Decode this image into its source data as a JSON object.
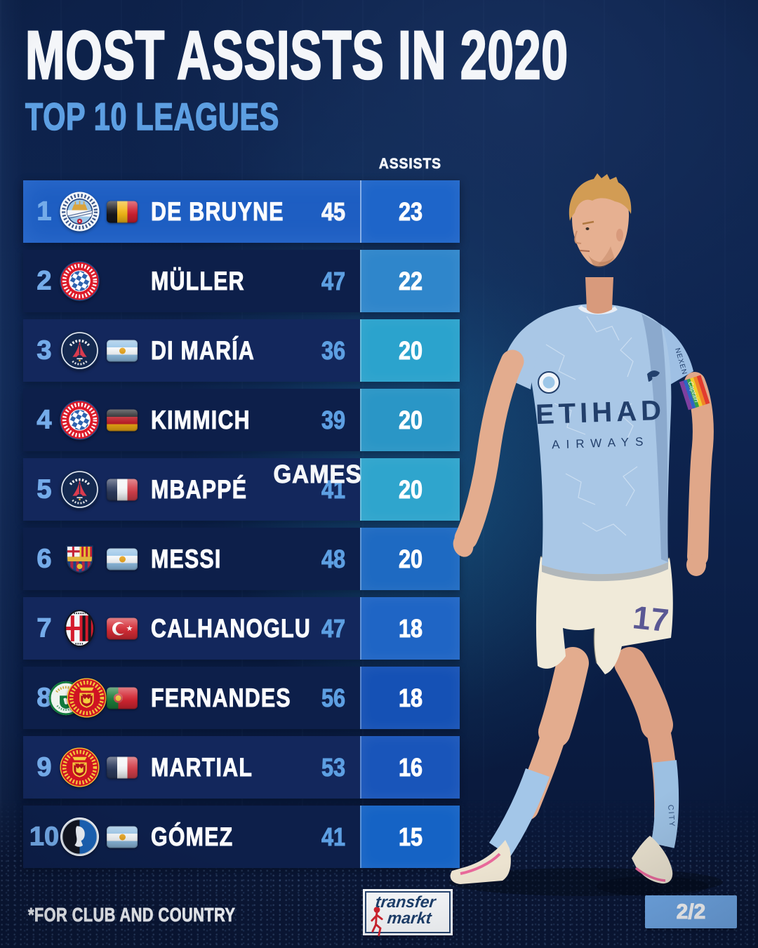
{
  "title": "MOST ASSISTS IN 2020",
  "subtitle": "TOP 10 LEAGUES",
  "columns": {
    "games": "GAMES",
    "assists": "ASSISTS"
  },
  "footer": {
    "note": "*FOR CLUB AND COUNTRY",
    "brand_line1": "transfer",
    "brand_line2": "markt",
    "page_indicator": "2/2"
  },
  "player": {
    "description": "Kevin De Bruyne in Manchester City home kit",
    "shirt_sponsor_line1": "ETIHAD",
    "shirt_sponsor_line2": "AIRWAYS",
    "sleeve_text": "NEXEN",
    "armband_text": "Captain",
    "shorts_number": "17",
    "sock_text": "CITY"
  },
  "colors": {
    "background": "#0d2149",
    "row_highlight": "#1e5ec2",
    "row_odd": "#13275c",
    "row_even": "#0d1f4a",
    "rank_text": "#74abe9",
    "games_text": "#5d9fe2",
    "games_text_highlight": "#f4f7fb",
    "title_text": "#f4f6f9",
    "subtitle_text": "#5d9fe2",
    "page_badge": "#72aae8",
    "brand_navy": "#1d3f6b",
    "brand_red": "#d2232e",
    "assist_cells": [
      "#1e65c9",
      "#2f86cb",
      "#2ba3cd",
      "#2a96c6",
      "#2fa5cd",
      "#1e6ac2",
      "#1f65c5",
      "#1551b5",
      "#1955ba",
      "#1563c5"
    ]
  },
  "chart_data": {
    "type": "table",
    "title": "MOST ASSISTS IN 2020",
    "subtitle": "TOP 10 LEAGUES",
    "note": "*FOR CLUB AND COUNTRY",
    "columns": [
      "GAMES",
      "ASSISTS"
    ],
    "rows": [
      {
        "rank": "1",
        "player": "DE BRUYNE",
        "club": "Manchester City",
        "club_icons": [
          "manchester-city"
        ],
        "nation": "Belgium",
        "flag": "belgium",
        "games": "45",
        "assists": "23",
        "highlight": true
      },
      {
        "rank": "2",
        "player": "MÜLLER",
        "club": "Bayern München",
        "club_icons": [
          "bayern"
        ],
        "nation": null,
        "flag": null,
        "games": "47",
        "assists": "22",
        "highlight": false
      },
      {
        "rank": "3",
        "player": "DI MARÍA",
        "club": "Paris Saint-Germain",
        "club_icons": [
          "psg"
        ],
        "nation": "Argentina",
        "flag": "argentina",
        "games": "36",
        "assists": "20",
        "highlight": false
      },
      {
        "rank": "4",
        "player": "KIMMICH",
        "club": "Bayern München",
        "club_icons": [
          "bayern"
        ],
        "nation": "Germany",
        "flag": "germany",
        "games": "39",
        "assists": "20",
        "highlight": false
      },
      {
        "rank": "5",
        "player": "MBAPPÉ",
        "club": "Paris Saint-Germain",
        "club_icons": [
          "psg"
        ],
        "nation": "France",
        "flag": "france",
        "games": "41",
        "assists": "20",
        "highlight": false
      },
      {
        "rank": "6",
        "player": "MESSI",
        "club": "FC Barcelona",
        "club_icons": [
          "barcelona"
        ],
        "nation": "Argentina",
        "flag": "argentina",
        "games": "48",
        "assists": "20",
        "highlight": false
      },
      {
        "rank": "7",
        "player": "CALHANOGLU",
        "club": "AC Milan",
        "club_icons": [
          "ac-milan"
        ],
        "nation": "Turkey",
        "flag": "turkey",
        "games": "47",
        "assists": "18",
        "highlight": false
      },
      {
        "rank": "8",
        "player": "FERNANDES",
        "club": "Sporting CP / Manchester United",
        "club_icons": [
          "sporting",
          "man-united"
        ],
        "nation": "Portugal",
        "flag": "portugal",
        "games": "56",
        "assists": "18",
        "highlight": false
      },
      {
        "rank": "9",
        "player": "MARTIAL",
        "club": "Manchester United",
        "club_icons": [
          "man-united"
        ],
        "nation": "France",
        "flag": "france",
        "games": "53",
        "assists": "16",
        "highlight": false
      },
      {
        "rank": "10",
        "player": "GÓMEZ",
        "club": "Atalanta",
        "club_icons": [
          "atalanta"
        ],
        "nation": "Argentina",
        "flag": "argentina",
        "games": "41",
        "assists": "15",
        "highlight": false
      }
    ]
  }
}
